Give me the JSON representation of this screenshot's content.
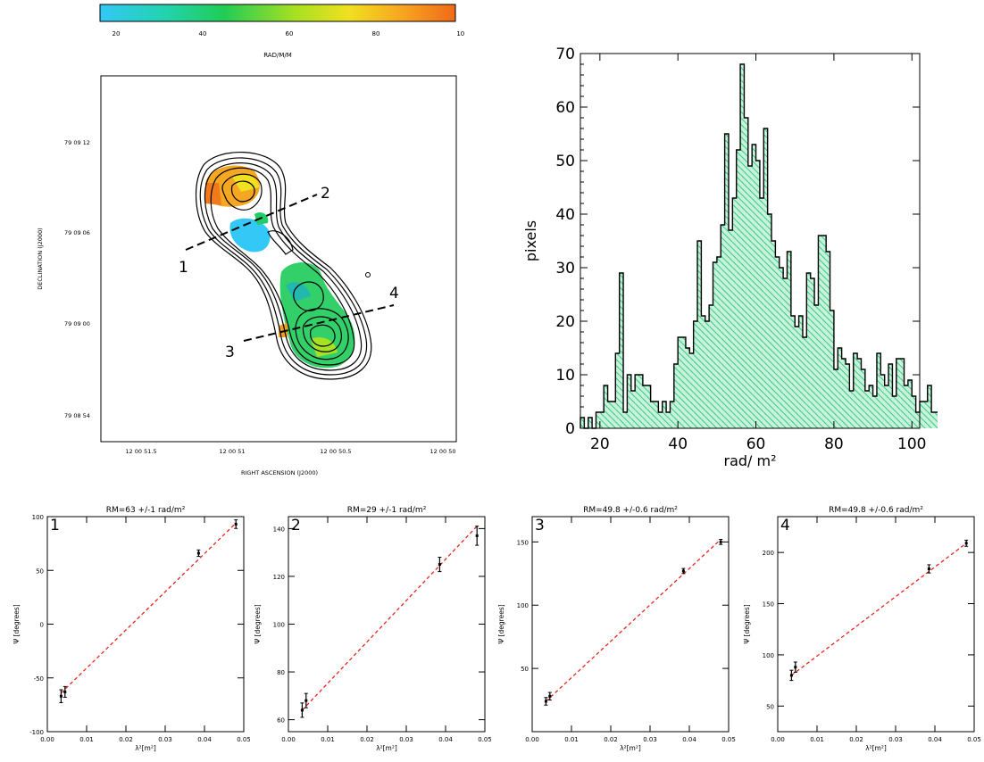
{
  "colorbar": {
    "label": "RAD/M/M",
    "ticks": [
      "20",
      "40",
      "60",
      "80",
      "100"
    ],
    "colors": [
      "#33c8f5",
      "#22d3b0",
      "#22cc55",
      "#a8e022",
      "#f0e020",
      "#f7a521",
      "#f06a18"
    ]
  },
  "map": {
    "ylabel": "DECLINATION (J2000)",
    "xlabel": "RIGHT ASCENSION (J2000)",
    "yticks": [
      "79 09 12",
      "79 09 06",
      "79 09 00",
      "79 08 54"
    ],
    "xticks": [
      "12 00 51.5",
      "12 00 51",
      "12 00 50.5",
      "12 00 50"
    ],
    "cut_labels": [
      "1",
      "2",
      "3",
      "4"
    ],
    "cut_color": "#000000"
  },
  "chart_data": [
    {
      "type": "bar",
      "panel": "histogram",
      "xlabel": "rad/ m²",
      "ylabel": "pixels",
      "xlim": [
        15,
        102
      ],
      "ylim": [
        0,
        70
      ],
      "xticks": [
        20,
        40,
        60,
        80,
        100
      ],
      "yticks": [
        0,
        10,
        20,
        30,
        40,
        50,
        60,
        70
      ],
      "bin_width": 1,
      "bin_start": 15,
      "values": [
        2,
        0,
        2,
        0,
        3,
        3,
        8,
        5,
        5,
        14,
        29,
        3,
        10,
        7,
        10,
        10,
        8,
        8,
        5,
        5,
        3,
        5,
        3,
        5,
        12,
        17,
        17,
        15,
        14,
        20,
        35,
        21,
        20,
        23,
        31,
        32,
        38,
        55,
        37,
        43,
        52,
        68,
        58,
        49,
        53,
        50,
        43,
        56,
        40,
        35,
        32,
        30,
        28,
        33,
        21,
        19,
        21,
        17,
        29,
        28,
        23,
        36,
        36,
        33,
        22,
        11,
        15,
        13,
        12,
        7,
        14,
        13,
        11,
        7,
        8,
        6,
        14,
        10,
        8,
        12,
        6,
        13,
        13,
        8,
        9,
        6,
        3,
        5,
        5,
        8,
        3,
        3,
        2
      ],
      "fill": "#2ecf7a",
      "grid": false
    },
    {
      "type": "scatter",
      "panel": "fit-1",
      "title": "RM=63 +/-1 rad/m²",
      "panel_label": "1",
      "xlabel": "λ²[m²]",
      "ylabel": "Ψ [degrees]",
      "xlim": [
        0,
        0.05
      ],
      "ylim": [
        -100,
        100
      ],
      "xticks": [
        "0.00",
        "0.01",
        "0.02",
        "0.03",
        "0.04",
        "0.05"
      ],
      "yticks": [
        "-100",
        "-50",
        "0",
        "50",
        "100"
      ],
      "points": [
        {
          "x": 0.0035,
          "y": -67,
          "err": 6
        },
        {
          "x": 0.0045,
          "y": -63,
          "err": 5
        },
        {
          "x": 0.0385,
          "y": 66,
          "err": 3
        },
        {
          "x": 0.048,
          "y": 93,
          "err": 4
        }
      ],
      "fit": [
        [
          0.0035,
          -64
        ],
        [
          0.048,
          94
        ]
      ],
      "fit_color": "#e8241c"
    },
    {
      "type": "scatter",
      "panel": "fit-2",
      "title": "RM=29 +/-1 rad/m²",
      "panel_label": "2",
      "xlabel": "λ²[m²]",
      "ylabel": "Ψ [degrees]",
      "xlim": [
        0,
        0.05
      ],
      "ylim": [
        55,
        145
      ],
      "xticks": [
        "0.00",
        "0.01",
        "0.02",
        "0.03",
        "0.04",
        "0.05"
      ],
      "yticks": [
        "60",
        "80",
        "100",
        "120",
        "140"
      ],
      "points": [
        {
          "x": 0.0035,
          "y": 64,
          "err": 3
        },
        {
          "x": 0.0045,
          "y": 68,
          "err": 3
        },
        {
          "x": 0.0385,
          "y": 125,
          "err": 3
        },
        {
          "x": 0.048,
          "y": 137,
          "err": 4
        }
      ],
      "fit": [
        [
          0.0035,
          64
        ],
        [
          0.048,
          141
        ]
      ],
      "fit_color": "#e8241c"
    },
    {
      "type": "scatter",
      "panel": "fit-3",
      "title": "RM=49.8 +/-0.6 rad/m²",
      "panel_label": "3",
      "xlabel": "λ²[m²]",
      "ylabel": "Ψ [degrees]",
      "xlim": [
        0,
        0.05
      ],
      "ylim": [
        0,
        170
      ],
      "xticks": [
        "0.00",
        "0.01",
        "0.02",
        "0.03",
        "0.04",
        "0.05"
      ],
      "yticks": [
        "50",
        "100",
        "150"
      ],
      "points": [
        {
          "x": 0.0035,
          "y": 24,
          "err": 3
        },
        {
          "x": 0.0045,
          "y": 28,
          "err": 3
        },
        {
          "x": 0.0385,
          "y": 127,
          "err": 2
        },
        {
          "x": 0.048,
          "y": 150,
          "err": 2
        }
      ],
      "fit": [
        [
          0.0035,
          24
        ],
        [
          0.048,
          152
        ]
      ],
      "fit_color": "#e8241c"
    },
    {
      "type": "scatter",
      "panel": "fit-4",
      "title": "RM=49.8 +/-0.6 rad/m²",
      "panel_label": "4",
      "xlabel": "λ²[m²]",
      "ylabel": "Ψ [degrees]",
      "xlim": [
        0,
        0.05
      ],
      "ylim": [
        25,
        235
      ],
      "xticks": [
        "0.00",
        "0.01",
        "0.02",
        "0.03",
        "0.04",
        "0.05"
      ],
      "yticks": [
        "50",
        "100",
        "150",
        "200"
      ],
      "points": [
        {
          "x": 0.0035,
          "y": 80,
          "err": 5
        },
        {
          "x": 0.0045,
          "y": 88,
          "err": 5
        },
        {
          "x": 0.0385,
          "y": 184,
          "err": 4
        },
        {
          "x": 0.048,
          "y": 209,
          "err": 3
        }
      ],
      "fit": [
        [
          0.0035,
          80
        ],
        [
          0.048,
          209
        ]
      ],
      "fit_color": "#e8241c"
    }
  ]
}
